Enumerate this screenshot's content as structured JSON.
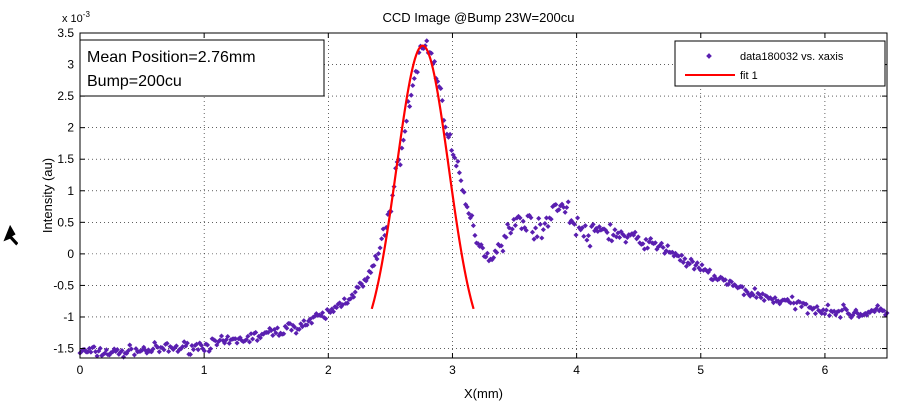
{
  "chart_data": {
    "type": "scatter",
    "title": "CCD Image @Bump 23W=200cu",
    "xlabel": "X(mm)",
    "ylabel": "Intensity (au)",
    "y_exponent_base": "x 10",
    "y_exponent_power": "-3",
    "xlim": [
      0,
      6.5
    ],
    "ylim": [
      -1.65,
      3.5
    ],
    "x_ticks": [
      0,
      1,
      2,
      3,
      4,
      5,
      6
    ],
    "x_tick_labels": [
      "0",
      "1",
      "2",
      "3",
      "4",
      "5",
      "6"
    ],
    "y_ticks": [
      -1.5,
      -1,
      -0.5,
      0,
      0.5,
      1,
      1.5,
      2,
      2.5,
      3,
      3.5
    ],
    "y_tick_labels": [
      "-1.5",
      "-1",
      "-0.5",
      "0",
      "0.5",
      "1",
      "1.5",
      "2",
      "2.5",
      "3",
      "3.5"
    ],
    "grid": "dotted",
    "legend_position": "top-right",
    "annotation": [
      "Mean Position=2.76mm",
      "Bump=200cu"
    ],
    "colors": {
      "data": "#5a1fb0",
      "fit": "#ff0000"
    },
    "series": [
      {
        "name": "data180032 vs. xaxis",
        "kind": "scatter",
        "profile_x": [
          0,
          0.3,
          0.6,
          0.9,
          1.2,
          1.5,
          1.8,
          2.0,
          2.15,
          2.3,
          2.4,
          2.5,
          2.6,
          2.7,
          2.75,
          2.8,
          2.85,
          2.9,
          3.0,
          3.1,
          3.15,
          3.2,
          3.25,
          3.3,
          3.35,
          3.45,
          3.55,
          3.65,
          3.72,
          3.8,
          3.85,
          3.9,
          4.0,
          4.1,
          4.2,
          4.4,
          4.6,
          4.75,
          4.9,
          5.1,
          5.3,
          5.5,
          5.8,
          6.1,
          6.3,
          6.5
        ],
        "profile_y": [
          -1.55,
          -1.57,
          -1.52,
          -1.48,
          -1.4,
          -1.28,
          -1.12,
          -0.95,
          -0.72,
          -0.45,
          -0.05,
          0.75,
          1.8,
          2.85,
          3.25,
          3.3,
          3.05,
          2.55,
          1.6,
          0.85,
          0.5,
          0.25,
          0.05,
          -0.1,
          0.05,
          0.35,
          0.55,
          0.45,
          0.32,
          0.7,
          0.78,
          0.72,
          0.45,
          0.25,
          0.4,
          0.25,
          0.15,
          0.05,
          -0.15,
          -0.35,
          -0.55,
          -0.68,
          -0.82,
          -0.92,
          -0.95,
          -0.9
        ],
        "noise_amplitude": 0.045,
        "point_count": 520
      },
      {
        "name": "fit 1",
        "kind": "line",
        "model": "gaussian",
        "mean": 2.76,
        "sigma": 0.21,
        "amplitude": 4.9,
        "offset": -1.6,
        "x_range": [
          2.35,
          3.17
        ]
      }
    ]
  }
}
